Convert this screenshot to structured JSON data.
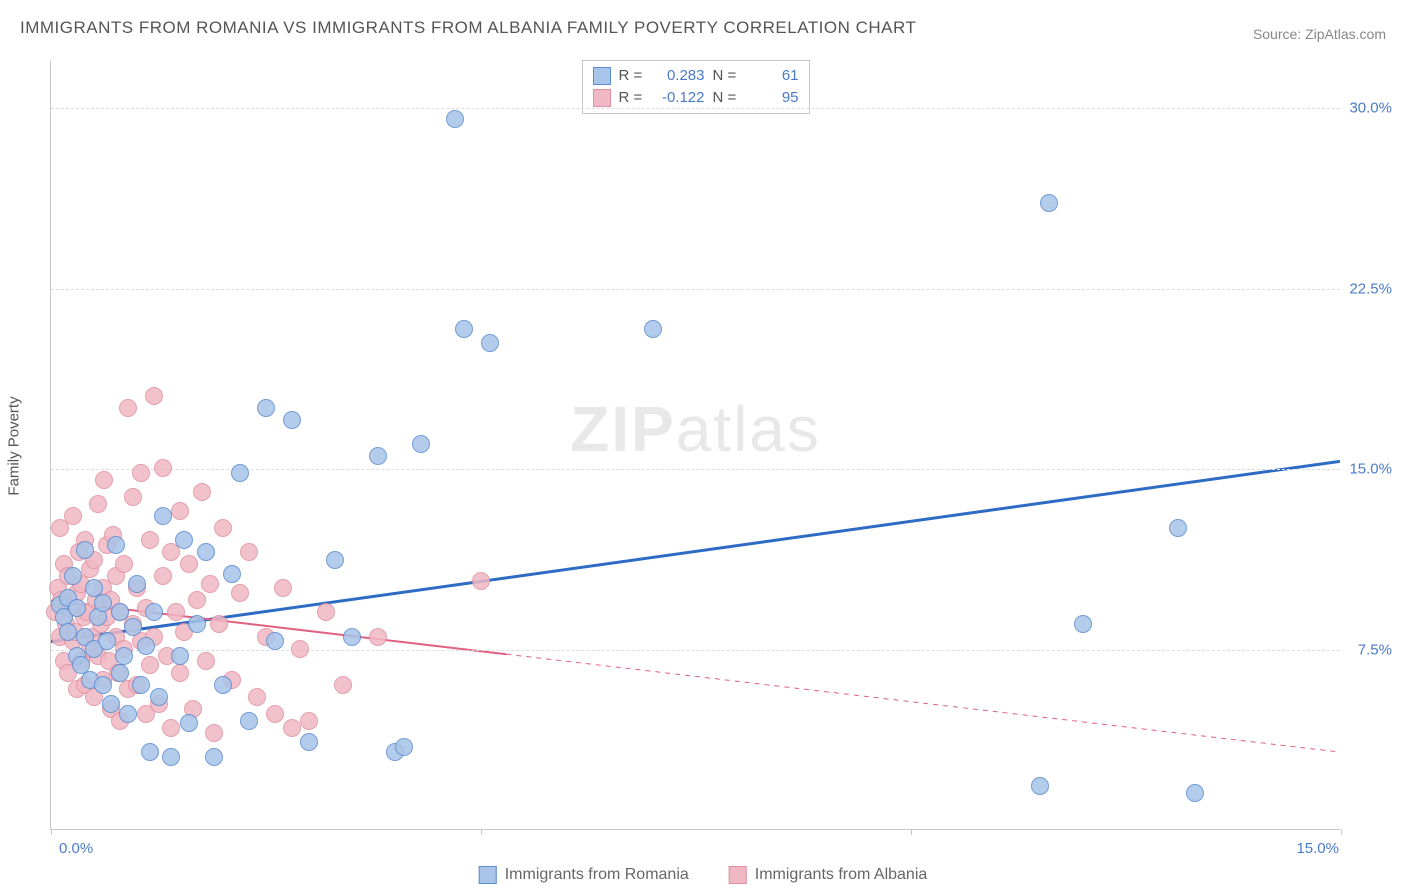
{
  "title": "IMMIGRANTS FROM ROMANIA VS IMMIGRANTS FROM ALBANIA FAMILY POVERTY CORRELATION CHART",
  "source_label": "Source: ",
  "source_value": "ZipAtlas.com",
  "ylabel": "Family Poverty",
  "watermark_prefix": "ZIP",
  "watermark_suffix": "atlas",
  "chart": {
    "type": "scatter",
    "background_color": "#ffffff",
    "grid_color": "#dcdcdc",
    "axis_color": "#c8c8c8",
    "xlim": [
      0,
      15
    ],
    "ylim": [
      0,
      32
    ],
    "xtick_positions": [
      0,
      5,
      10,
      15
    ],
    "xtick_labels": [
      "0.0%",
      "",
      "",
      "15.0%"
    ],
    "ytick_positions": [
      7.5,
      15.0,
      22.5,
      30.0
    ],
    "ytick_labels": [
      "7.5%",
      "15.0%",
      "22.5%",
      "30.0%"
    ],
    "label_fontsize": 15,
    "label_color": "#4a7bc9",
    "marker_radius": 9,
    "marker_border_width": 1.5,
    "marker_fill_opacity": 0.35
  },
  "series": [
    {
      "name": "Immigrants from Romania",
      "color_stroke": "#5b8bd0",
      "color_fill": "#a8c4e8",
      "R_label": "R  =",
      "R": "0.283",
      "N_label": "N  =",
      "N": "61",
      "trend": {
        "x1": 0,
        "y1": 7.8,
        "x2": 15,
        "y2": 15.3,
        "width": 3,
        "dash_after_x": null
      },
      "points": [
        [
          0.1,
          9.3
        ],
        [
          0.15,
          8.8
        ],
        [
          0.2,
          8.2
        ],
        [
          0.2,
          9.6
        ],
        [
          0.25,
          10.5
        ],
        [
          0.3,
          7.2
        ],
        [
          0.3,
          9.2
        ],
        [
          0.35,
          6.8
        ],
        [
          0.4,
          8.0
        ],
        [
          0.4,
          11.6
        ],
        [
          0.45,
          6.2
        ],
        [
          0.5,
          7.5
        ],
        [
          0.5,
          10.0
        ],
        [
          0.55,
          8.8
        ],
        [
          0.6,
          6.0
        ],
        [
          0.6,
          9.4
        ],
        [
          0.65,
          7.8
        ],
        [
          0.7,
          5.2
        ],
        [
          0.75,
          11.8
        ],
        [
          0.8,
          6.5
        ],
        [
          0.8,
          9.0
        ],
        [
          0.85,
          7.2
        ],
        [
          0.9,
          4.8
        ],
        [
          0.95,
          8.4
        ],
        [
          1.0,
          10.2
        ],
        [
          1.05,
          6.0
        ],
        [
          1.1,
          7.6
        ],
        [
          1.15,
          3.2
        ],
        [
          1.2,
          9.0
        ],
        [
          1.25,
          5.5
        ],
        [
          1.3,
          13.0
        ],
        [
          1.4,
          3.0
        ],
        [
          1.5,
          7.2
        ],
        [
          1.55,
          12.0
        ],
        [
          1.6,
          4.4
        ],
        [
          1.7,
          8.5
        ],
        [
          1.8,
          11.5
        ],
        [
          1.9,
          3.0
        ],
        [
          2.0,
          6.0
        ],
        [
          2.1,
          10.6
        ],
        [
          2.2,
          14.8
        ],
        [
          2.3,
          4.5
        ],
        [
          2.5,
          17.5
        ],
        [
          2.6,
          7.8
        ],
        [
          2.8,
          17.0
        ],
        [
          3.0,
          3.6
        ],
        [
          3.3,
          11.2
        ],
        [
          3.5,
          8.0
        ],
        [
          3.8,
          15.5
        ],
        [
          4.0,
          3.2
        ],
        [
          4.1,
          3.4
        ],
        [
          4.3,
          16.0
        ],
        [
          4.7,
          29.5
        ],
        [
          4.8,
          20.8
        ],
        [
          5.1,
          20.2
        ],
        [
          7.0,
          20.8
        ],
        [
          11.6,
          26.0
        ],
        [
          12.0,
          8.5
        ],
        [
          13.1,
          12.5
        ],
        [
          13.3,
          1.5
        ],
        [
          11.5,
          1.8
        ]
      ]
    },
    {
      "name": "Immigrants from Albania",
      "color_stroke": "#e090a0",
      "color_fill": "#f0b8c4",
      "R_label": "R  =",
      "R": "-0.122",
      "N_label": "N  =",
      "N": "95",
      "trend": {
        "x1": 0,
        "y1": 9.5,
        "x2": 15,
        "y2": 3.2,
        "width": 2,
        "dash_after_x": 5.3
      },
      "points": [
        [
          0.05,
          9.0
        ],
        [
          0.08,
          10.0
        ],
        [
          0.1,
          8.0
        ],
        [
          0.1,
          12.5
        ],
        [
          0.12,
          9.5
        ],
        [
          0.15,
          7.0
        ],
        [
          0.15,
          11.0
        ],
        [
          0.18,
          8.5
        ],
        [
          0.2,
          6.5
        ],
        [
          0.2,
          10.5
        ],
        [
          0.22,
          9.2
        ],
        [
          0.25,
          7.8
        ],
        [
          0.25,
          13.0
        ],
        [
          0.28,
          8.2
        ],
        [
          0.3,
          5.8
        ],
        [
          0.3,
          9.8
        ],
        [
          0.32,
          11.5
        ],
        [
          0.35,
          7.0
        ],
        [
          0.35,
          10.2
        ],
        [
          0.38,
          8.8
        ],
        [
          0.4,
          6.0
        ],
        [
          0.4,
          12.0
        ],
        [
          0.42,
          9.0
        ],
        [
          0.45,
          7.5
        ],
        [
          0.45,
          10.8
        ],
        [
          0.48,
          8.0
        ],
        [
          0.5,
          5.5
        ],
        [
          0.5,
          11.2
        ],
        [
          0.52,
          9.5
        ],
        [
          0.55,
          7.2
        ],
        [
          0.55,
          13.5
        ],
        [
          0.58,
          8.5
        ],
        [
          0.6,
          6.2
        ],
        [
          0.6,
          10.0
        ],
        [
          0.62,
          14.5
        ],
        [
          0.65,
          8.8
        ],
        [
          0.65,
          11.8
        ],
        [
          0.68,
          7.0
        ],
        [
          0.7,
          5.0
        ],
        [
          0.7,
          9.5
        ],
        [
          0.72,
          12.2
        ],
        [
          0.75,
          8.0
        ],
        [
          0.75,
          10.5
        ],
        [
          0.78,
          6.5
        ],
        [
          0.8,
          4.5
        ],
        [
          0.8,
          9.0
        ],
        [
          0.85,
          11.0
        ],
        [
          0.85,
          7.5
        ],
        [
          0.9,
          5.8
        ],
        [
          0.9,
          17.5
        ],
        [
          0.95,
          8.5
        ],
        [
          0.95,
          13.8
        ],
        [
          1.0,
          6.0
        ],
        [
          1.0,
          10.0
        ],
        [
          1.05,
          14.8
        ],
        [
          1.05,
          7.8
        ],
        [
          1.1,
          4.8
        ],
        [
          1.1,
          9.2
        ],
        [
          1.15,
          12.0
        ],
        [
          1.15,
          6.8
        ],
        [
          1.2,
          18.0
        ],
        [
          1.2,
          8.0
        ],
        [
          1.25,
          5.2
        ],
        [
          1.3,
          10.5
        ],
        [
          1.3,
          15.0
        ],
        [
          1.35,
          7.2
        ],
        [
          1.4,
          11.5
        ],
        [
          1.4,
          4.2
        ],
        [
          1.45,
          9.0
        ],
        [
          1.5,
          13.2
        ],
        [
          1.5,
          6.5
        ],
        [
          1.55,
          8.2
        ],
        [
          1.6,
          11.0
        ],
        [
          1.65,
          5.0
        ],
        [
          1.7,
          9.5
        ],
        [
          1.75,
          14.0
        ],
        [
          1.8,
          7.0
        ],
        [
          1.85,
          10.2
        ],
        [
          1.9,
          4.0
        ],
        [
          1.95,
          8.5
        ],
        [
          2.0,
          12.5
        ],
        [
          2.1,
          6.2
        ],
        [
          2.2,
          9.8
        ],
        [
          2.3,
          11.5
        ],
        [
          2.4,
          5.5
        ],
        [
          2.5,
          8.0
        ],
        [
          2.6,
          4.8
        ],
        [
          2.7,
          10.0
        ],
        [
          2.8,
          4.2
        ],
        [
          2.9,
          7.5
        ],
        [
          3.0,
          4.5
        ],
        [
          3.2,
          9.0
        ],
        [
          3.4,
          6.0
        ],
        [
          3.8,
          8.0
        ],
        [
          5.0,
          10.3
        ]
      ]
    }
  ],
  "legend_bottom": [
    {
      "label": "Immigrants from Romania",
      "stroke": "#5b8bd0",
      "fill": "#a8c4e8"
    },
    {
      "label": "Immigrants from Albania",
      "stroke": "#e090a0",
      "fill": "#f0b8c4"
    }
  ]
}
